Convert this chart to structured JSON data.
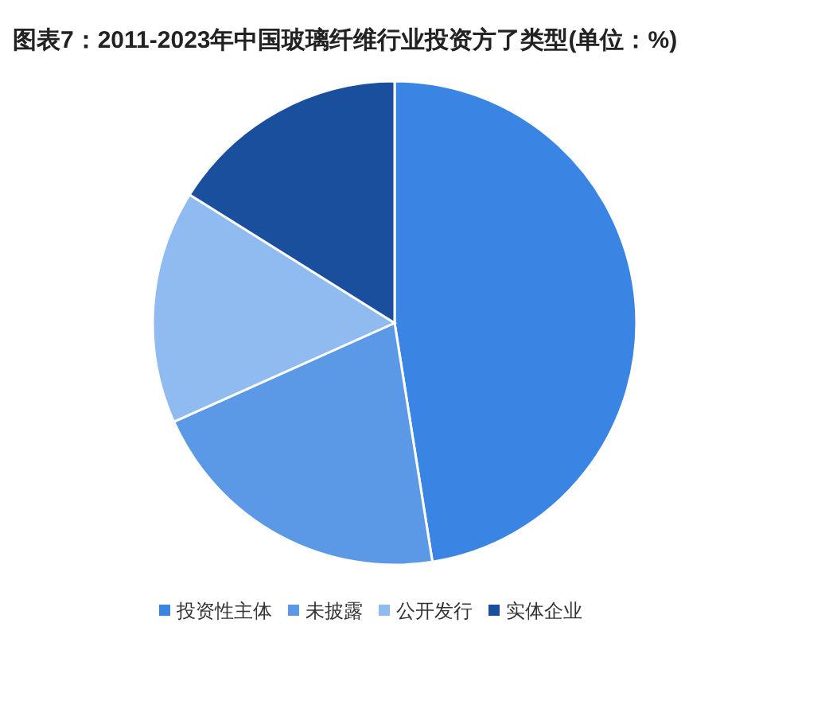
{
  "chart_data": {
    "type": "pie",
    "title": "图表7：2011-2023年中国玻璃纤维行业投资方了类型(单位：%)",
    "categories": [
      "投资性主体",
      "未披露",
      "公开发行",
      "实体企业"
    ],
    "values": [
      47.5,
      20.8,
      15.6,
      16.1
    ],
    "colors": [
      "#3a84e4",
      "#5b98e6",
      "#8fbbf0",
      "#1a4f9e"
    ],
    "legend": "bottom"
  }
}
